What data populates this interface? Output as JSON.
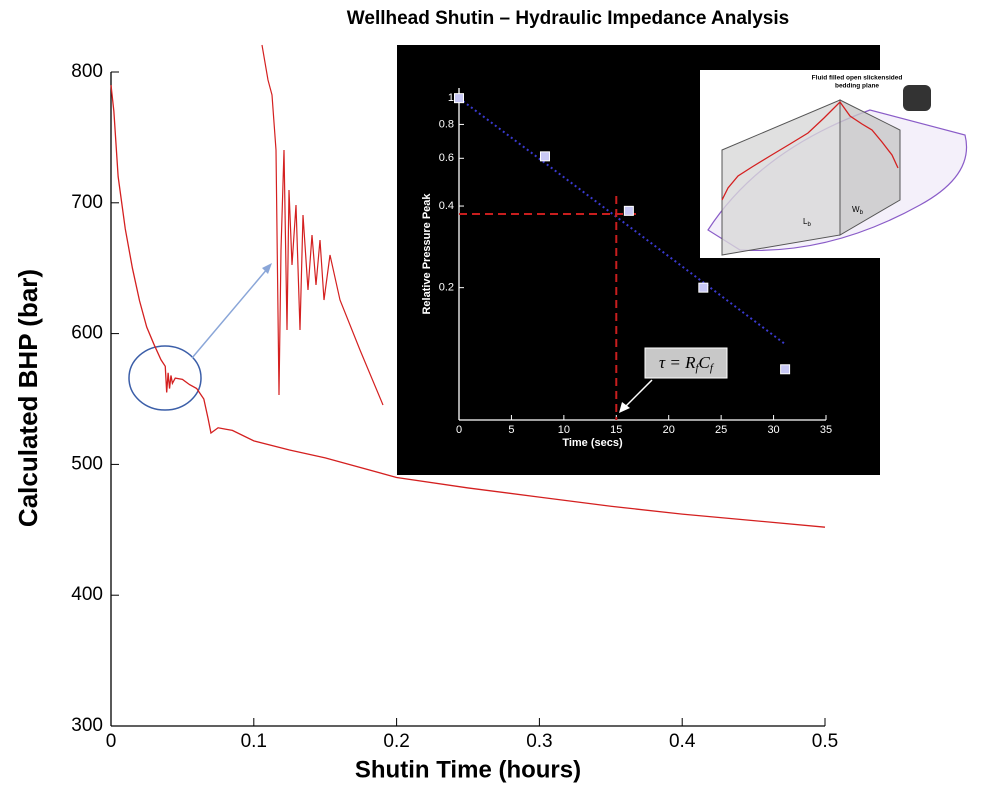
{
  "chart_data": [
    {
      "type": "line",
      "title": "Wellhead Shutin – Hydraulic Impedance Analysis",
      "x_label": "Shutin Time (hours)",
      "y_label": "Calculated BHP (bar)",
      "x": [
        0,
        0.002,
        0.005,
        0.01,
        0.015,
        0.02,
        0.025,
        0.03,
        0.035,
        0.038,
        0.039,
        0.04,
        0.041,
        0.042,
        0.043,
        0.045,
        0.05,
        0.055,
        0.06,
        0.065,
        0.068,
        0.07,
        0.075,
        0.08,
        0.085,
        0.1,
        0.125,
        0.15,
        0.2,
        0.25,
        0.3,
        0.35,
        0.4,
        0.45,
        0.5
      ],
      "values": [
        790,
        770,
        720,
        680,
        650,
        625,
        605,
        592,
        580,
        575,
        555,
        570,
        558,
        568,
        562,
        566,
        565,
        561,
        558,
        550,
        535,
        524,
        528,
        527,
        526,
        518,
        511,
        505,
        490,
        482,
        475,
        468,
        462,
        457,
        452
      ],
      "color": "#d42020",
      "xlim": [
        0,
        0.5
      ],
      "ylim": [
        300,
        800
      ],
      "xticks": [
        0,
        0.1,
        0.2,
        0.3,
        0.4,
        0.5
      ],
      "yticks": [
        300,
        400,
        500,
        600,
        700,
        800
      ]
    },
    {
      "type": "scatter",
      "x_label": "Time (secs)",
      "y_label": "Relative Pressure Peak",
      "x": [
        0,
        8.2,
        16.2,
        23.3,
        31.1
      ],
      "values": [
        1.0,
        0.61,
        0.384,
        0.2,
        0.1
      ],
      "color": "#c8c8f4",
      "fit": {
        "x": [
          0,
          31.2
        ],
        "values": [
          1.0,
          0.123
        ],
        "color": "#3a3ad0"
      },
      "ref_x": 15,
      "ref_y": 0.374,
      "ref_color": "#c81e1e",
      "log_scale_y": true,
      "xlim": [
        0,
        35
      ],
      "ylim": [
        0.065,
        1.09
      ],
      "xticks": [
        0,
        5,
        10,
        15,
        20,
        25,
        30,
        35
      ],
      "yticks": [
        0.2,
        0.4,
        0.6,
        0.8,
        1
      ],
      "equation": [
        "τ = R",
        "f",
        "C",
        "f"
      ]
    }
  ],
  "diagram": {
    "caption": [
      "Fluid filled open slickensided",
      "bedding plane"
    ],
    "length_label": {
      "text": "L",
      "sub": "b"
    },
    "width_label": {
      "text": "W",
      "sub": "b"
    }
  }
}
